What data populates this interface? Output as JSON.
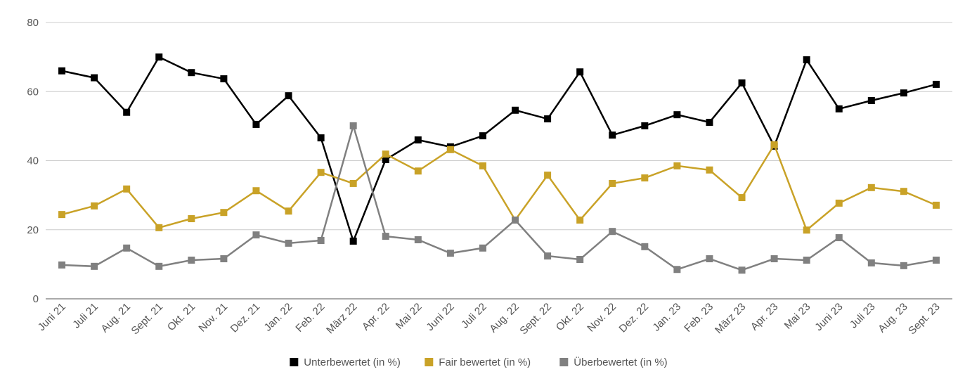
{
  "chart_data": {
    "type": "line",
    "categories": [
      "Juni 21",
      "Juli 21",
      "Aug. 21",
      "Sept. 21",
      "Okt. 21",
      "Nov. 21",
      "Dez. 21",
      "Jan. 22",
      "Feb. 22",
      "März 22",
      "Apr. 22",
      "Mai 22",
      "Juni 22",
      "Juli 22",
      "Aug. 22",
      "Sept. 22",
      "Okt. 22",
      "Nov. 22",
      "Dez. 22",
      "Jan. 23",
      "Feb. 23",
      "März 23",
      "Apr. 23",
      "Mai 23",
      "Juni 23",
      "Juli 23",
      "Aug. 23",
      "Sept. 23"
    ],
    "series": [
      {
        "name": "Unterbewertet (in %)",
        "color": "#000000",
        "values": [
          66,
          64,
          54,
          70,
          65.5,
          63.7,
          50.5,
          58.8,
          46.6,
          16.7,
          40.3,
          46,
          44,
          47.2,
          54.6,
          52.1,
          65.7,
          47.4,
          50.1,
          53.3,
          51.1,
          62.5,
          44.2,
          69.2,
          55,
          57.4,
          59.6,
          62.1
        ]
      },
      {
        "name": "Fair bewertet (in %)",
        "color": "#c9a227",
        "values": [
          24.4,
          26.9,
          31.8,
          20.6,
          23.2,
          25,
          31.3,
          25.4,
          36.6,
          33.4,
          41.9,
          37,
          43.2,
          38.5,
          22.8,
          35.8,
          22.8,
          33.4,
          35,
          38.5,
          37.3,
          29.3,
          44.6,
          19.9,
          27.7,
          32.2,
          31.1,
          27.1
        ]
      },
      {
        "name": "Überbewertet (in %)",
        "color": "#808080",
        "values": [
          9.8,
          9.4,
          14.7,
          9.4,
          11.2,
          11.6,
          18.5,
          16.1,
          16.9,
          50.1,
          18.1,
          17.1,
          13.2,
          14.7,
          22.8,
          12.4,
          11.4,
          19.5,
          15.1,
          8.5,
          11.6,
          8.3,
          11.6,
          11.2,
          17.7,
          10.4,
          9.6,
          11.2
        ]
      }
    ],
    "ylim": [
      0,
      80
    ],
    "yticks": [
      0,
      20,
      40,
      60,
      80
    ],
    "grid": true
  }
}
